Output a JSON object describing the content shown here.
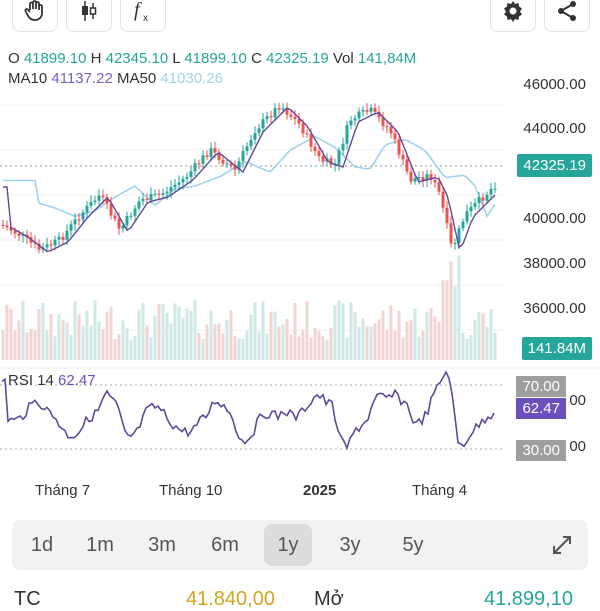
{
  "toolbar": {
    "left_icons": [
      "hand-icon",
      "candlestick-icon",
      "function-icon"
    ],
    "right_icons": [
      "gear-icon",
      "share-icon"
    ]
  },
  "ohlc": {
    "o_label": "O",
    "o": "41899.10",
    "h_label": "H",
    "h": "42345.10",
    "l_label": "L",
    "l": "41899.10",
    "c_label": "C",
    "c": "42325.19",
    "vol_label": "Vol",
    "vol": "141,84M"
  },
  "ma": {
    "ma10_label": "MA10",
    "ma10": "41137.22",
    "ma50_label": "MA50",
    "ma50": "41030.26"
  },
  "y_axis": [
    "46000.00",
    "44000.00",
    "40000.00",
    "38000.00",
    "36000.00"
  ],
  "current_price_tag": "42325.19",
  "volume_tag": "141.84M",
  "rsi": {
    "label": "RSI 14",
    "value": "62.47",
    "level_70": "70.00",
    "level_30": "30.00",
    "partial_label_right_1": "00",
    "partial_label_right_2": "00"
  },
  "x_axis": [
    "Tháng 7",
    "Tháng 10",
    "2025",
    "Tháng 4"
  ],
  "ranges": [
    "1d",
    "1m",
    "3m",
    "6m",
    "1y",
    "3y",
    "5y"
  ],
  "active_range": "1y",
  "bottom": {
    "left_label": "TC",
    "left_value": "41.840,00",
    "mid_label": "Mở",
    "right_value": "41.899,10"
  },
  "colors": {
    "up": "#26a69a",
    "down": "#ef5350",
    "ma10": "#7b61c4",
    "ma50": "#9fd3ef",
    "rsi": "#5e4a9c",
    "volume": "#d9d9d9"
  }
}
